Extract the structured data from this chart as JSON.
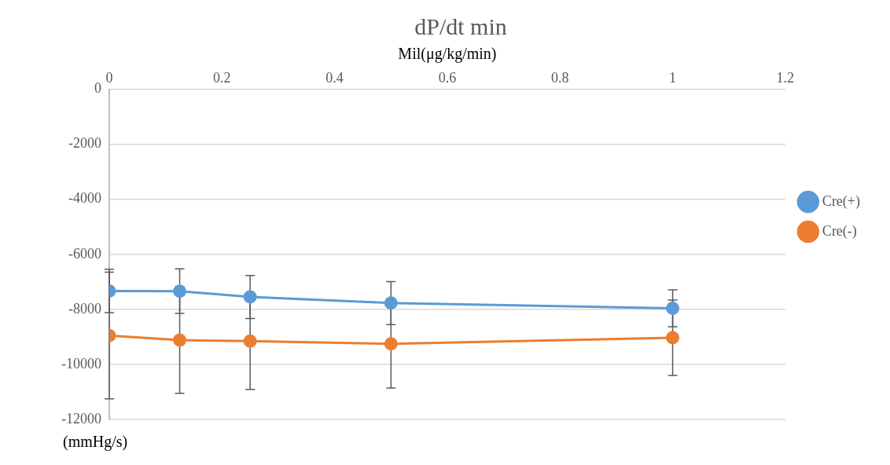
{
  "chart_data": {
    "type": "line",
    "title": "dP/dt min",
    "xlabel": "Mil(μg/kg/min)",
    "ylabel": "(mmHg/s)",
    "x": [
      0,
      0.125,
      0.25,
      0.5,
      1
    ],
    "series": [
      {
        "name": "Cre(+)",
        "color": "#5b9bd5",
        "values": [
          -7330,
          -7340,
          -7550,
          -7770,
          -7960
        ],
        "errors": [
          790,
          810,
          780,
          780,
          670
        ]
      },
      {
        "name": "Cre(-)",
        "color": "#ed7d31",
        "values": [
          -8950,
          -9120,
          -9150,
          -9250,
          -9030
        ],
        "errors": [
          2300,
          1930,
          1760,
          1610,
          1370
        ]
      }
    ],
    "xlim": [
      0,
      1.2
    ],
    "xticks": [
      0,
      0.2,
      0.4,
      0.6,
      0.8,
      1,
      1.2
    ],
    "ylim": [
      -12000,
      0
    ],
    "yticks": [
      -12000,
      -10000,
      -8000,
      -6000,
      -4000,
      -2000,
      0
    ],
    "grid": "y",
    "legend": "right",
    "marker": "circle",
    "line_style": "solid"
  }
}
